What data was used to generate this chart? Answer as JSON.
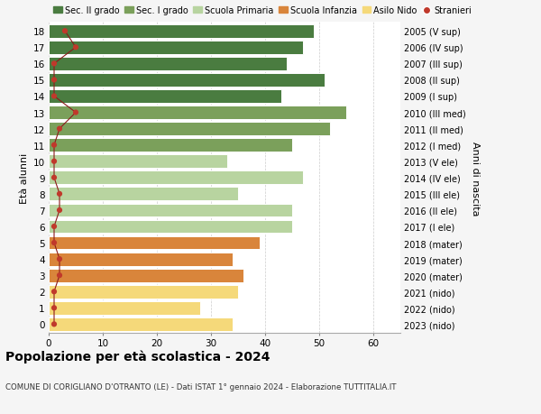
{
  "ages": [
    18,
    17,
    16,
    15,
    14,
    13,
    12,
    11,
    10,
    9,
    8,
    7,
    6,
    5,
    4,
    3,
    2,
    1,
    0
  ],
  "bar_values": [
    49,
    47,
    44,
    51,
    43,
    55,
    52,
    45,
    33,
    47,
    35,
    45,
    45,
    39,
    34,
    36,
    35,
    28,
    34
  ],
  "bar_colors": [
    "#4a7c40",
    "#4a7c40",
    "#4a7c40",
    "#4a7c40",
    "#4a7c40",
    "#7ba05b",
    "#7ba05b",
    "#7ba05b",
    "#b8d4a0",
    "#b8d4a0",
    "#b8d4a0",
    "#b8d4a0",
    "#b8d4a0",
    "#d9853b",
    "#d9853b",
    "#d9853b",
    "#f5d97a",
    "#f5d97a",
    "#f5d97a"
  ],
  "stranieri_values": [
    3,
    5,
    1,
    1,
    1,
    5,
    2,
    1,
    1,
    1,
    2,
    2,
    1,
    1,
    2,
    2,
    1,
    1,
    1
  ],
  "right_labels": [
    "2005 (V sup)",
    "2006 (IV sup)",
    "2007 (III sup)",
    "2008 (II sup)",
    "2009 (I sup)",
    "2010 (III med)",
    "2011 (II med)",
    "2012 (I med)",
    "2013 (V ele)",
    "2014 (IV ele)",
    "2015 (III ele)",
    "2016 (II ele)",
    "2017 (I ele)",
    "2018 (mater)",
    "2019 (mater)",
    "2020 (mater)",
    "2021 (nido)",
    "2022 (nido)",
    "2023 (nido)"
  ],
  "legend_labels": [
    "Sec. II grado",
    "Sec. I grado",
    "Scuola Primaria",
    "Scuola Infanzia",
    "Asilo Nido",
    "Stranieri"
  ],
  "legend_colors": [
    "#4a7c40",
    "#7ba05b",
    "#b8d4a0",
    "#d9853b",
    "#f5d97a",
    "#c0392b"
  ],
  "ylabel_left": "Età alunni",
  "ylabel_right": "Anni di nascita",
  "title": "Popolazione per età scolastica - 2024",
  "subtitle": "COMUNE DI CORIGLIANO D'OTRANTO (LE) - Dati ISTAT 1° gennaio 2024 - Elaborazione TUTTITALIA.IT",
  "xlim": [
    0,
    65
  ],
  "background_color": "#f5f5f5",
  "bar_background": "#ffffff",
  "grid_color": "#cccccc"
}
